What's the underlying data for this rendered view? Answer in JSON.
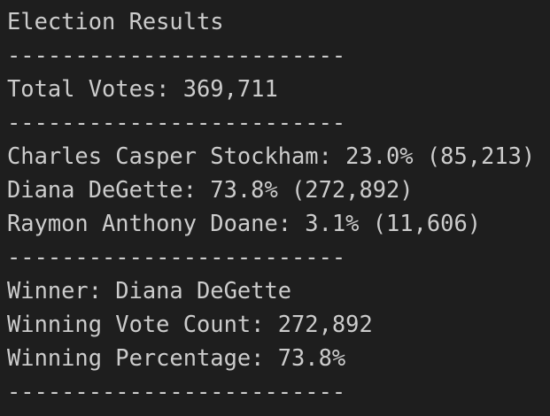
{
  "terminal": {
    "lines": [
      "Election Results",
      "-------------------------",
      "Total Votes: 369,711",
      "-------------------------",
      "Charles Casper Stockham: 23.0% (85,213)",
      "Diana DeGette: 73.8% (272,892)",
      "Raymon Anthony Doane: 3.1% (11,606)",
      "-------------------------",
      "Winner: Diana DeGette",
      "Winning Vote Count: 272,892",
      "Winning Percentage: 73.8%",
      "-------------------------"
    ]
  }
}
